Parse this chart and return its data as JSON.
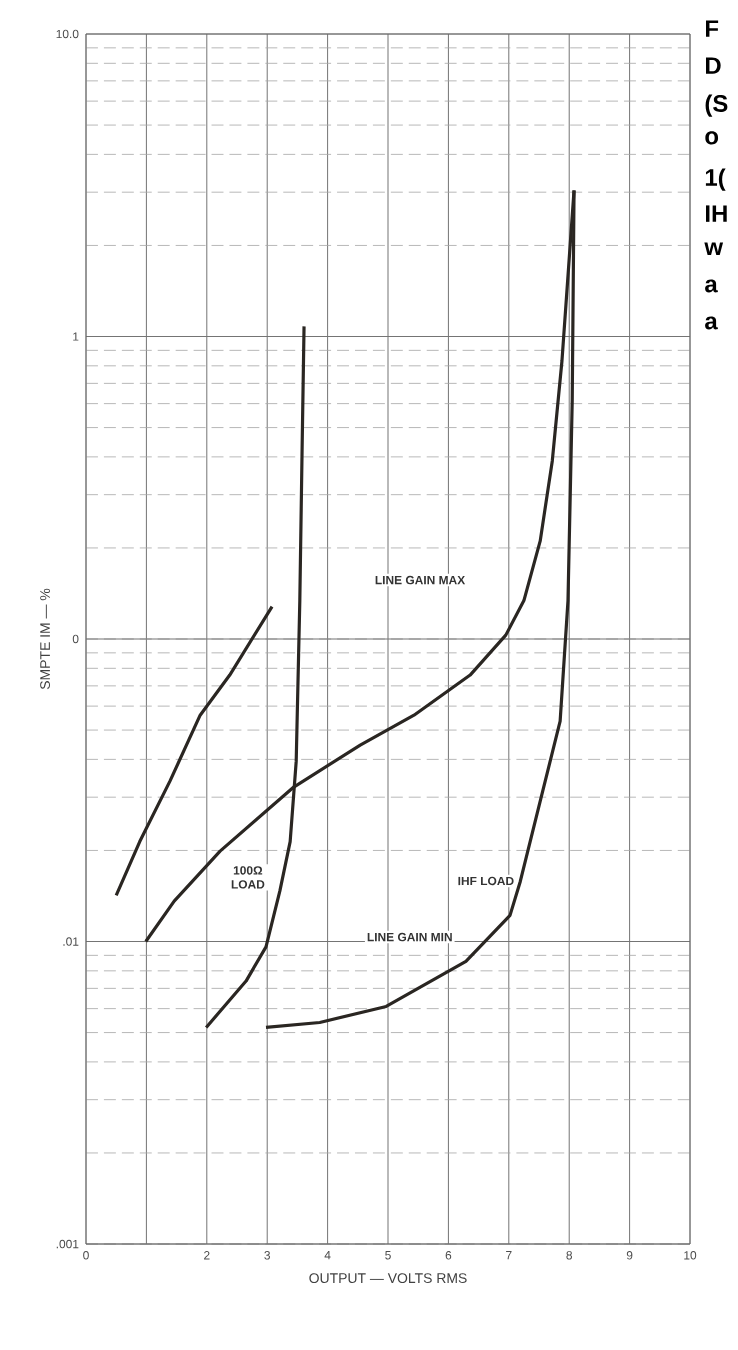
{
  "chart_data": {
    "type": "line",
    "xlabel": "OUTPUT — VOLTS RMS",
    "ylabel": "SMPTE IM — %",
    "xlim": [
      0,
      10
    ],
    "xticks": [
      0,
      {
        "value": 1,
        "label": null
      },
      2,
      3,
      4,
      5,
      6,
      7,
      8,
      9,
      10
    ],
    "ylim": [
      0.001,
      10
    ],
    "yticks": [
      {
        "value": 0.001,
        "label": ".001"
      },
      {
        "value": 0.01,
        "label": ".01"
      },
      {
        "value": 0.1,
        "label": "0"
      },
      {
        "value": 1,
        "label": "1"
      },
      {
        "value": 10,
        "label": "10.0"
      }
    ],
    "log": "y",
    "grid": true,
    "marker": "none",
    "line_style": "solid",
    "series": [
      {
        "color": "#2a2622",
        "x": [
          0.5,
          0.89,
          1.39,
          1.89,
          2.38,
          3.08
        ],
        "values": [
          0.0142,
          0.0214,
          0.0339,
          0.056,
          0.076,
          0.128
        ]
      },
      {
        "color": "#2a2622",
        "x": [
          0.99,
          1.46,
          2.22,
          3.44,
          4.54,
          5.43,
          6.36,
          6.95,
          7.25,
          7.52,
          7.72,
          7.88,
          8.08
        ],
        "values": [
          0.01,
          0.0136,
          0.0199,
          0.0324,
          0.0446,
          0.056,
          0.076,
          0.103,
          0.134,
          0.211,
          0.388,
          0.83,
          3.04
        ]
      },
      {
        "color": "#2a2622",
        "x": [
          2.98,
          3.87,
          4.97,
          6.29,
          7.02,
          7.19,
          7.52,
          7.85,
          7.98,
          8.05,
          8.08
        ],
        "values": [
          0.0052,
          0.0054,
          0.0061,
          0.0086,
          0.0122,
          0.0158,
          0.0291,
          0.0535,
          0.134,
          0.614,
          3.04
        ]
      },
      {
        "color": "#2a2622",
        "x": [
          1.99,
          2.65,
          2.98,
          3.21,
          3.38,
          3.48,
          3.54,
          3.58,
          3.61
        ],
        "values": [
          0.0052,
          0.0074,
          0.0096,
          0.0147,
          0.0214,
          0.0394,
          0.134,
          0.453,
          1.08
        ]
      }
    ],
    "annotations": [
      "LINE GAIN MAX",
      "100Ω LOAD",
      "IHF LOAD",
      "LINE GAIN MIN",
      "F",
      "D",
      "(S",
      "o",
      "1(",
      "IH",
      "w",
      "a",
      "a"
    ]
  }
}
